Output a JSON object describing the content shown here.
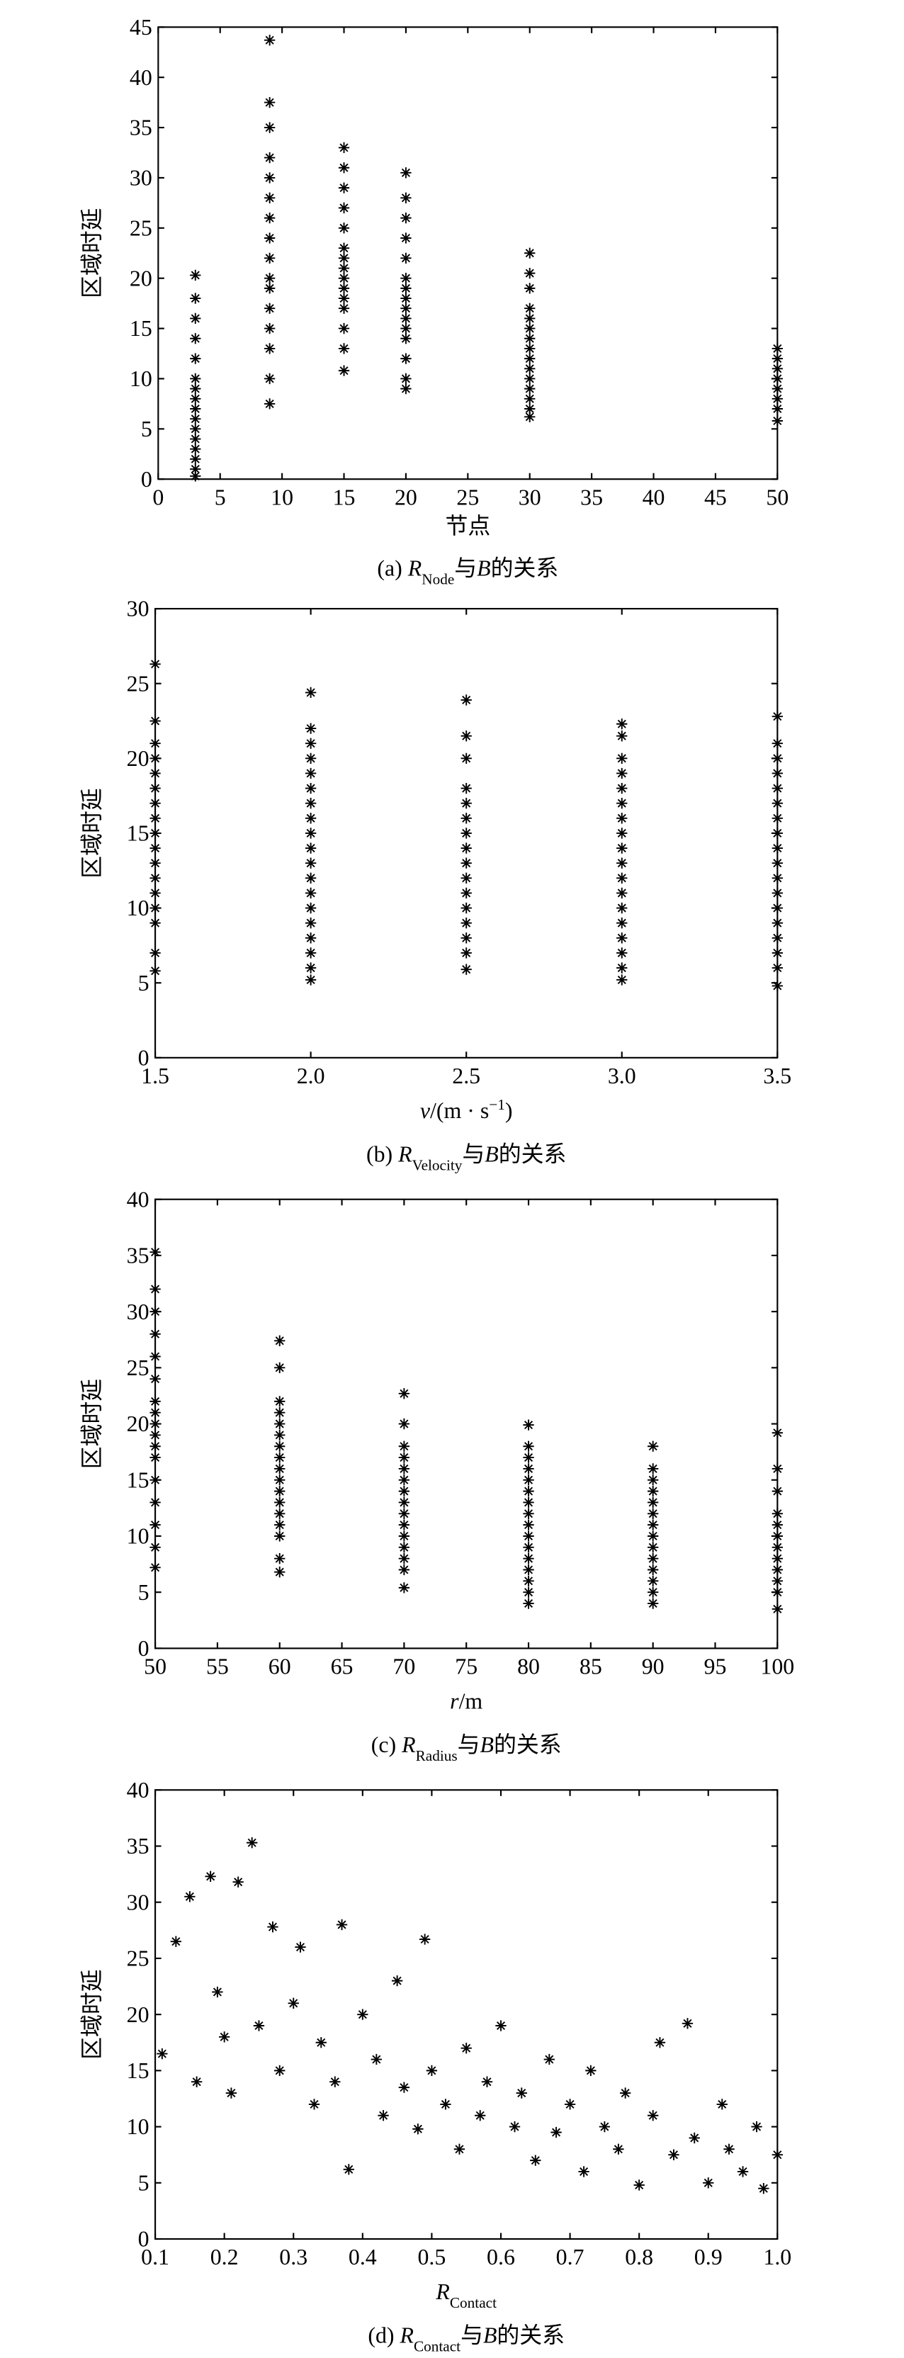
{
  "chart_data": [
    {
      "type": "scatter",
      "color": "#000000",
      "ylabel": "区域时延",
      "xlabel": [
        {
          "text": "节点"
        }
      ],
      "caption": [
        {
          "text": "(a) "
        },
        {
          "text": "R",
          "style": "italic"
        },
        {
          "text": "Node",
          "style": "sub"
        },
        {
          "text": "与"
        },
        {
          "text": "B",
          "style": "italic"
        },
        {
          "text": "的关系"
        }
      ],
      "xlim": [
        0,
        50
      ],
      "xticks": [
        0,
        5,
        10,
        15,
        20,
        25,
        30,
        35,
        40,
        45,
        50
      ],
      "ylim": [
        0,
        45
      ],
      "yticks": [
        0,
        5,
        10,
        15,
        20,
        25,
        30,
        35,
        40,
        45
      ],
      "x": [
        3,
        3,
        3,
        3,
        3,
        3,
        3,
        3,
        3,
        3,
        3,
        3,
        3,
        3,
        3,
        3,
        9,
        9,
        9,
        9,
        9,
        9,
        9,
        9,
        9,
        9,
        9,
        9,
        9,
        9,
        9,
        9,
        15,
        15,
        15,
        15,
        15,
        15,
        15,
        15,
        15,
        15,
        15,
        15,
        15,
        15,
        15,
        20,
        20,
        20,
        20,
        20,
        20,
        20,
        20,
        20,
        20,
        20,
        20,
        20,
        20,
        20,
        30,
        30,
        30,
        30,
        30,
        30,
        30,
        30,
        30,
        30,
        30,
        30,
        30,
        30,
        30,
        50,
        50,
        50,
        50,
        50,
        50,
        50,
        50
      ],
      "values": [
        0.3,
        1,
        2,
        3,
        4,
        5,
        6,
        7,
        8,
        9,
        10,
        12,
        14,
        16,
        18,
        20.3,
        7.5,
        10,
        13,
        15,
        17,
        19,
        20,
        22,
        24,
        26,
        28,
        30,
        32,
        35,
        37.5,
        43.7,
        10.8,
        13,
        15,
        17,
        18,
        19,
        20,
        21,
        22,
        23,
        25,
        27,
        29,
        31,
        33,
        9,
        10,
        12,
        14,
        15,
        16,
        17,
        18,
        19,
        20,
        22,
        24,
        26,
        28,
        30.5,
        6.2,
        7,
        8,
        9,
        10,
        11,
        12,
        13,
        14,
        15,
        16,
        17,
        19,
        20.5,
        22.5,
        5.8,
        7,
        8,
        9,
        10,
        11,
        12,
        13
      ]
    },
    {
      "type": "scatter",
      "color": "#000000",
      "ylabel": "区域时延",
      "xlabel": [
        {
          "text": "v",
          "style": "italic"
        },
        {
          "text": "/(m · s"
        },
        {
          "text": "−1",
          "style": "sup"
        },
        {
          "text": ")"
        }
      ],
      "caption": [
        {
          "text": "(b) "
        },
        {
          "text": "R",
          "style": "italic"
        },
        {
          "text": "Velocity",
          "style": "sub"
        },
        {
          "text": "与"
        },
        {
          "text": "B",
          "style": "italic"
        },
        {
          "text": "的关系"
        }
      ],
      "xlim": [
        1.5,
        3.5
      ],
      "xticks": [
        1.5,
        {
          "value": 2,
          "label": "2.0"
        },
        2.5,
        {
          "value": 3,
          "label": "3.0"
        },
        3.5
      ],
      "ylim": [
        0,
        30
      ],
      "yticks": [
        0,
        5,
        10,
        15,
        20,
        25,
        30
      ],
      "x": [
        1.5,
        1.5,
        1.5,
        1.5,
        1.5,
        1.5,
        1.5,
        1.5,
        1.5,
        1.5,
        1.5,
        1.5,
        1.5,
        1.5,
        1.5,
        1.5,
        1.5,
        2,
        2,
        2,
        2,
        2,
        2,
        2,
        2,
        2,
        2,
        2,
        2,
        2,
        2,
        2,
        2,
        2,
        2,
        2,
        2.5,
        2.5,
        2.5,
        2.5,
        2.5,
        2.5,
        2.5,
        2.5,
        2.5,
        2.5,
        2.5,
        2.5,
        2.5,
        2.5,
        2.5,
        2.5,
        3,
        3,
        3,
        3,
        3,
        3,
        3,
        3,
        3,
        3,
        3,
        3,
        3,
        3,
        3,
        3,
        3,
        3,
        3.5,
        3.5,
        3.5,
        3.5,
        3.5,
        3.5,
        3.5,
        3.5,
        3.5,
        3.5,
        3.5,
        3.5,
        3.5,
        3.5,
        3.5,
        3.5,
        3.5,
        3.5
      ],
      "values": [
        5.8,
        7,
        9,
        10,
        11,
        12,
        13,
        14,
        15,
        16,
        17,
        18,
        19,
        20,
        21,
        22.5,
        26.3,
        5.2,
        6,
        7,
        8,
        9,
        10,
        11,
        12,
        13,
        14,
        15,
        16,
        17,
        18,
        19,
        20,
        21,
        22,
        24.4,
        5.9,
        7,
        8,
        9,
        10,
        11,
        12,
        13,
        14,
        15,
        16,
        17,
        18,
        20,
        21.5,
        23.9,
        5.2,
        6,
        7,
        8,
        9,
        10,
        11,
        12,
        13,
        14,
        15,
        16,
        17,
        18,
        19,
        20,
        21.5,
        22.3,
        4.8,
        6,
        7,
        8,
        9,
        10,
        11,
        12,
        13,
        14,
        15,
        16,
        17,
        18,
        19,
        20,
        21,
        22.8
      ]
    },
    {
      "type": "scatter",
      "color": "#000000",
      "ylabel": "区域时延",
      "xlabel": [
        {
          "text": "r",
          "style": "italic"
        },
        {
          "text": "/m"
        }
      ],
      "caption": [
        {
          "text": "(c) "
        },
        {
          "text": "R",
          "style": "italic"
        },
        {
          "text": "Radius",
          "style": "sub"
        },
        {
          "text": "与"
        },
        {
          "text": "B",
          "style": "italic"
        },
        {
          "text": "的关系"
        }
      ],
      "xlim": [
        50,
        100
      ],
      "xticks": [
        50,
        55,
        60,
        65,
        70,
        75,
        80,
        85,
        90,
        95,
        100
      ],
      "ylim": [
        0,
        40
      ],
      "yticks": [
        0,
        5,
        10,
        15,
        20,
        25,
        30,
        35,
        40
      ],
      "x": [
        50,
        50,
        50,
        50,
        50,
        50,
        50,
        50,
        50,
        50,
        50,
        50,
        50,
        50,
        50,
        50,
        50,
        60,
        60,
        60,
        60,
        60,
        60,
        60,
        60,
        60,
        60,
        60,
        60,
        60,
        60,
        60,
        60,
        60,
        70,
        70,
        70,
        70,
        70,
        70,
        70,
        70,
        70,
        70,
        70,
        70,
        70,
        70,
        70,
        80,
        80,
        80,
        80,
        80,
        80,
        80,
        80,
        80,
        80,
        80,
        80,
        80,
        80,
        80,
        80,
        90,
        90,
        90,
        90,
        90,
        90,
        90,
        90,
        90,
        90,
        90,
        90,
        90,
        90,
        100,
        100,
        100,
        100,
        100,
        100,
        100,
        100,
        100,
        100,
        100,
        100
      ],
      "values": [
        7.2,
        9,
        11,
        13,
        15,
        17,
        18,
        19,
        20,
        21,
        22,
        24,
        26,
        28,
        30,
        32,
        35.3,
        6.8,
        8,
        10,
        11,
        12,
        13,
        14,
        15,
        16,
        17,
        18,
        19,
        20,
        21,
        22,
        25,
        27.4,
        5.4,
        7,
        8,
        9,
        10,
        11,
        12,
        13,
        14,
        15,
        16,
        17,
        18,
        20,
        22.7,
        4,
        5,
        6,
        7,
        8,
        9,
        10,
        11,
        12,
        13,
        14,
        15,
        16,
        17,
        18,
        19.9,
        4,
        5,
        6,
        7,
        8,
        9,
        10,
        11,
        12,
        13,
        14,
        15,
        16,
        18,
        3.5,
        5,
        6,
        7,
        8,
        9,
        10,
        11,
        12,
        14,
        16,
        19.2
      ]
    },
    {
      "type": "scatter",
      "color": "#000000",
      "ylabel": "区域时延",
      "xlabel": [
        {
          "text": "R",
          "style": "italic"
        },
        {
          "text": "Contact",
          "style": "sub"
        }
      ],
      "caption": [
        {
          "text": "(d) "
        },
        {
          "text": "R",
          "style": "italic"
        },
        {
          "text": "Contact",
          "style": "sub"
        },
        {
          "text": "与"
        },
        {
          "text": "B",
          "style": "italic"
        },
        {
          "text": "的关系"
        }
      ],
      "xlim": [
        0.1,
        1.0
      ],
      "xticks": [
        0.1,
        0.2,
        0.3,
        0.4,
        0.5,
        0.6,
        0.7,
        0.8,
        0.9,
        {
          "value": 1,
          "label": "1.0"
        }
      ],
      "ylim": [
        0,
        40
      ],
      "yticks": [
        0,
        5,
        10,
        15,
        20,
        25,
        30,
        35,
        40
      ],
      "x": [
        0.11,
        0.13,
        0.15,
        0.16,
        0.18,
        0.19,
        0.2,
        0.21,
        0.22,
        0.24,
        0.25,
        0.27,
        0.28,
        0.3,
        0.31,
        0.33,
        0.34,
        0.36,
        0.37,
        0.38,
        0.4,
        0.42,
        0.43,
        0.45,
        0.46,
        0.48,
        0.49,
        0.5,
        0.52,
        0.54,
        0.55,
        0.57,
        0.58,
        0.6,
        0.62,
        0.63,
        0.65,
        0.67,
        0.68,
        0.7,
        0.72,
        0.73,
        0.75,
        0.77,
        0.78,
        0.8,
        0.82,
        0.83,
        0.85,
        0.87,
        0.88,
        0.9,
        0.92,
        0.93,
        0.95,
        0.97,
        0.98,
        1.0
      ],
      "values": [
        16.5,
        26.5,
        30.5,
        14,
        32.3,
        22,
        18,
        13,
        31.8,
        35.3,
        19,
        27.8,
        15,
        21,
        26,
        12,
        17.5,
        14,
        28,
        6.2,
        20,
        16,
        11,
        23,
        13.5,
        9.8,
        26.7,
        15,
        12,
        8,
        17,
        11,
        14,
        19,
        10,
        13,
        7,
        16,
        9.5,
        12,
        6,
        15,
        10,
        8,
        13,
        4.8,
        11,
        17.5,
        7.5,
        19.2,
        9,
        5,
        12,
        8,
        6,
        10,
        4.5,
        7.5
      ]
    }
  ]
}
